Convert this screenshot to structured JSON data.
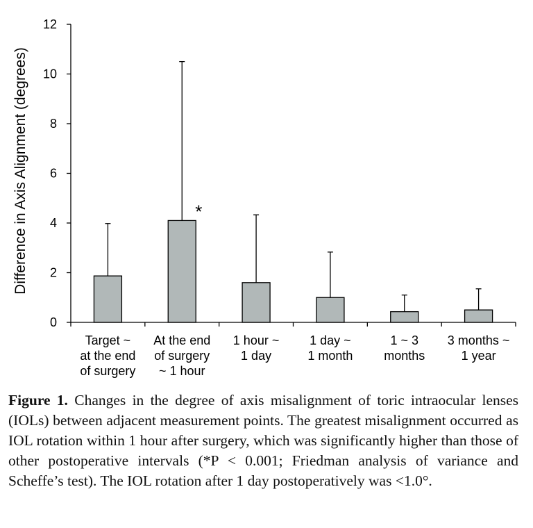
{
  "chart_data": {
    "type": "bar",
    "ylabel": "Difference in Axis Alignment (degrees)",
    "ylim": [
      0,
      12
    ],
    "yticks": [
      "0",
      "2",
      "4",
      "6",
      "8",
      "10",
      "12"
    ],
    "categories": [
      [
        "Target ~",
        "at the end",
        "of surgery"
      ],
      [
        "At the end",
        "of surgery",
        "~ 1 hour"
      ],
      [
        "1 hour ~",
        "1 day"
      ],
      [
        "1 day ~",
        "1 month"
      ],
      [
        "1 ~ 3",
        "months"
      ],
      [
        "3 months ~",
        "1 year"
      ]
    ],
    "values": [
      1.87,
      4.1,
      1.6,
      1.0,
      0.43,
      0.5
    ],
    "error_upper": [
      3.98,
      10.5,
      4.33,
      2.83,
      1.1,
      1.35
    ],
    "annotation": {
      "text": "*",
      "category_index": 1
    },
    "bar_color": "#b1b8b8",
    "grid": false
  },
  "caption": {
    "label": "Figure 1.",
    "text": "Changes in the degree of axis misalignment of toric intraocular lenses (IOLs) between adjacent measurement points. The greatest misalignment occurred as IOL rotation within 1 hour after surgery, which was significantly higher than those of other postoperative intervals (*P < 0.001; Friedman analysis of variance and Scheffe’s test). The IOL rotation after 1 day postoperatively was <1.0°."
  }
}
